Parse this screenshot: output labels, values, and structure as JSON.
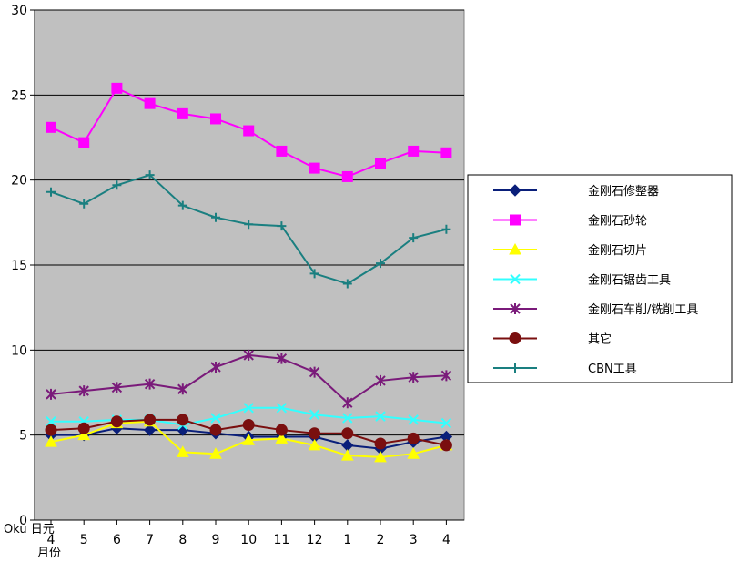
{
  "chart_data": {
    "type": "line",
    "title": "",
    "ylabel": "",
    "xlabel": "",
    "y_axis_note": "Oku 日元",
    "x_axis_note": "月份",
    "ylim": [
      0,
      30
    ],
    "yticks": [
      "0",
      "5",
      "10",
      "15",
      "20",
      "25",
      "30"
    ],
    "categories": [
      "4",
      "5",
      "6",
      "7",
      "8",
      "9",
      "10",
      "11",
      "12",
      "1",
      "2",
      "3",
      "4"
    ],
    "grid": "horizontal",
    "legend_position": "right",
    "plot_background": "#c0c0c0",
    "series": [
      {
        "name": "金刚石修整器",
        "color": "#0a1f7a",
        "marker": "diamond",
        "values": [
          5.0,
          5.0,
          5.4,
          5.3,
          5.3,
          5.1,
          4.9,
          4.9,
          4.9,
          4.4,
          4.2,
          4.6,
          4.9
        ]
      },
      {
        "name": "金刚石砂轮",
        "color": "#ff00ff",
        "marker": "square",
        "values": [
          23.1,
          22.2,
          25.4,
          24.5,
          23.9,
          23.6,
          22.9,
          21.7,
          20.7,
          20.2,
          21.0,
          21.7,
          21.6
        ]
      },
      {
        "name": "金刚石切片",
        "color": "#ffff00",
        "marker": "triangle",
        "values": [
          4.6,
          5.0,
          5.7,
          5.8,
          4.0,
          3.9,
          4.7,
          4.8,
          4.4,
          3.8,
          3.7,
          3.9,
          4.4
        ]
      },
      {
        "name": "金刚石锯齿工具",
        "color": "#33ffff",
        "marker": "x",
        "values": [
          5.8,
          5.8,
          5.9,
          5.9,
          5.6,
          6.0,
          6.6,
          6.6,
          6.2,
          6.0,
          6.1,
          5.9,
          5.7
        ]
      },
      {
        "name": "金刚石车削/铣削工具",
        "color": "#7a1a7a",
        "marker": "star",
        "values": [
          7.4,
          7.6,
          7.8,
          8.0,
          7.7,
          9.0,
          9.7,
          9.5,
          8.7,
          6.9,
          8.2,
          8.4,
          8.5
        ]
      },
      {
        "name": "其它",
        "color": "#7a0f0f",
        "marker": "circle",
        "values": [
          5.3,
          5.4,
          5.8,
          5.9,
          5.9,
          5.3,
          5.6,
          5.3,
          5.1,
          5.1,
          4.5,
          4.8,
          4.4
        ]
      },
      {
        "name": "CBN工具",
        "color": "#1a7f80",
        "marker": "plus",
        "values": [
          19.3,
          18.6,
          19.7,
          20.3,
          18.5,
          17.8,
          17.4,
          17.3,
          14.5,
          13.9,
          15.1,
          16.6,
          17.1
        ]
      }
    ]
  }
}
